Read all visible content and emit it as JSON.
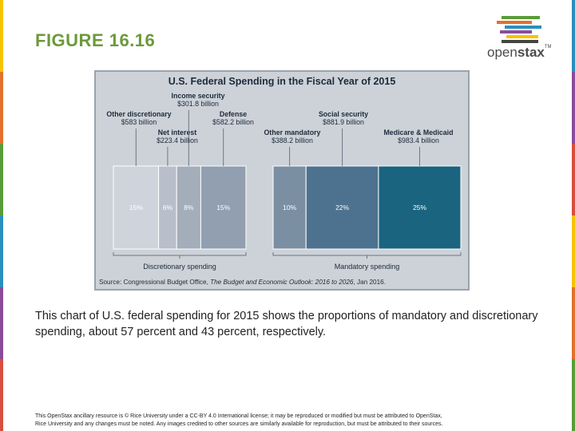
{
  "slide": {
    "title": "FIGURE 16.16",
    "logo_text_light": "open",
    "logo_text_bold": "stax",
    "logo_tm": "TM",
    "caption": "This chart of U.S. federal spending for 2015 shows the proportions of mandatory and discretionary spending, about 57 percent and 43 percent, respectively.",
    "footer_line1": "This OpenStax ancillary resource is © Rice University under a CC-BY 4.0 International license; it may be reproduced or modified but must be attributed to OpenStax,",
    "footer_line2": "Rice University and any changes must be noted. Any images credited to other sources are similarly available for reproduction, but must be attributed to their sources.",
    "edge_colors": [
      "#f5c400",
      "#e2712d",
      "#5a9c3a",
      "#2a8fbd",
      "#8a4c9a",
      "#d94f3d"
    ]
  },
  "chart_data": {
    "type": "bar",
    "subtype": "stacked-horizontal-100",
    "title": "U.S. Federal Spending in the Fiscal Year of 2015",
    "source_prefix": "Source: Congressional Budget Office, ",
    "source_italic": "The Budget and Economic Outlook: 2016 to 2026",
    "source_suffix": ", Jan 2016.",
    "groups": [
      {
        "name": "Discretionary spending",
        "segments": [
          "Other discretionary",
          "Net interest",
          "Income security",
          "Defense"
        ]
      },
      {
        "name": "Mandatory spending",
        "segments": [
          "Other mandatory",
          "Social security",
          "Medicare & Medicaid"
        ]
      }
    ],
    "segments": [
      {
        "name": "Other discretionary",
        "amount": "$583 billion",
        "percent": 15,
        "percent_label": "15%",
        "color": "#cfd3dc"
      },
      {
        "name": "Net interest",
        "amount": "$223.4 billion",
        "percent": 6,
        "percent_label": "6%",
        "color": "#b8bfcb"
      },
      {
        "name": "Income security",
        "amount": "$301.8 billion",
        "percent": 8,
        "percent_label": "8%",
        "color": "#a4aebb"
      },
      {
        "name": "Defense",
        "amount": "$582.2 billion",
        "percent": 15,
        "percent_label": "15%",
        "color": "#919fb0"
      },
      {
        "name": "Other mandatory",
        "amount": "$388.2 billion",
        "percent": 10,
        "percent_label": "10%",
        "color": "#7b8fa3"
      },
      {
        "name": "Social security",
        "amount": "$881.9 billion",
        "percent": 22,
        "percent_label": "22%",
        "color": "#4d7290"
      },
      {
        "name": "Medicare & Medicaid",
        "amount": "$983.4 billion",
        "percent": 25,
        "percent_label": "25%",
        "color": "#1a6480"
      }
    ]
  }
}
